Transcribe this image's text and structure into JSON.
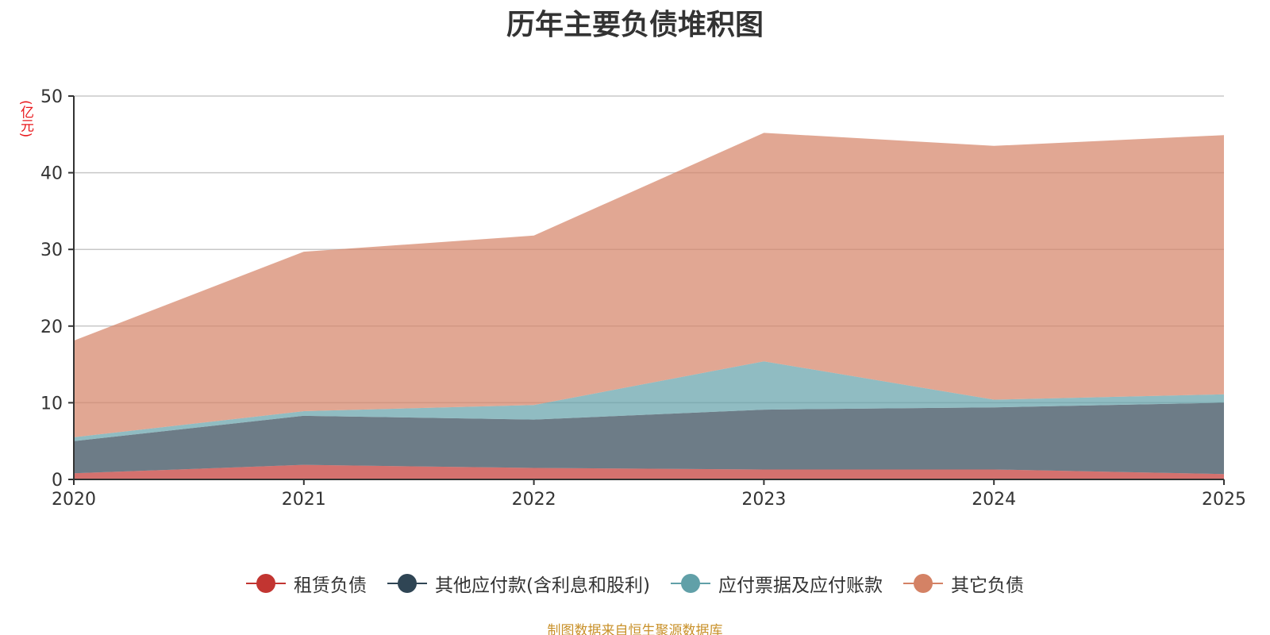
{
  "chart_data": {
    "type": "area",
    "stacked": true,
    "title": "历年主要负债堆积图",
    "unit_label": "(亿元)",
    "categories": [
      "2020",
      "2021",
      "2022",
      "2023",
      "2024",
      "2025"
    ],
    "y_axis": {
      "min": 0,
      "max": 50,
      "ticks": [
        0,
        10,
        20,
        30,
        40,
        50
      ]
    },
    "grid": true,
    "series": [
      {
        "name": "租赁负债",
        "color": "#c23531",
        "values": [
          0.8,
          1.9,
          1.5,
          1.3,
          1.3,
          0.7
        ]
      },
      {
        "name": "其他应付款(含利息和股利)",
        "color": "#2f4554",
        "values": [
          4.2,
          6.4,
          6.3,
          7.8,
          8.1,
          9.3
        ]
      },
      {
        "name": "应付票据及应付账款",
        "color": "#61a0a8",
        "values": [
          0.5,
          0.6,
          1.9,
          6.3,
          1.0,
          1.1
        ]
      },
      {
        "name": "其它负债",
        "color": "#d48265",
        "values": [
          12.6,
          20.8,
          22.1,
          29.8,
          33.1,
          33.8
        ]
      }
    ],
    "legend_position": "bottom",
    "source_note": "制图数据来自恒生聚源数据库"
  }
}
